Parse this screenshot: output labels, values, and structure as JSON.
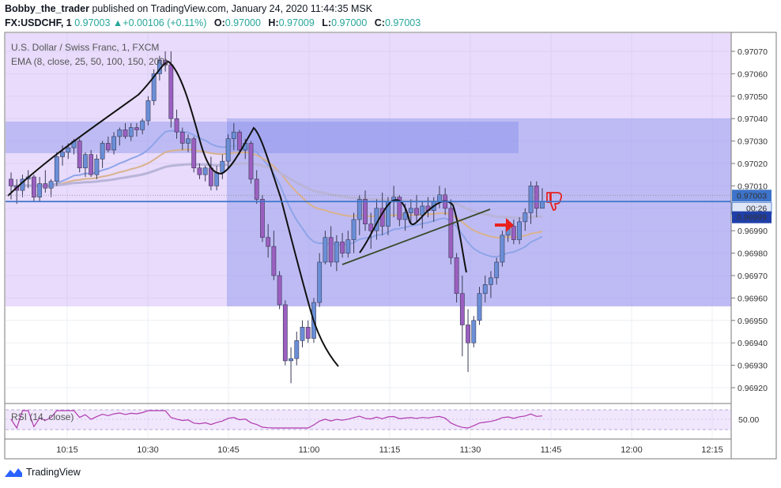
{
  "header": {
    "author": "Bobby_the_trader",
    "published": "published on TradingView.com, January 24, 2020 11:44:35 MSK",
    "symbol": "FX:USDCHF, 1",
    "last": "0.97003",
    "change_arrow": "▲",
    "change": "+0.00106 (+0.11%)",
    "o_label": "O:",
    "o": "0.97000",
    "h_label": "H:",
    "h": "0.97009",
    "l_label": "L:",
    "l": "0.97000",
    "c_label": "C:",
    "c": "0.97003"
  },
  "footer": {
    "brand": "TradingView",
    "logo_icon": "tradingview-logo-icon"
  },
  "colors": {
    "up": "#6a8fd8",
    "down": "#9b5fc0",
    "accent_green": "#26a69a",
    "price_line": "#3d73c9",
    "zone_purple": "rgba(200,170,245,0.42)",
    "zone_blue": "rgba(120,135,235,0.38)",
    "ema_fast": "#8fa4e8",
    "ema_mid": "#d9b28c",
    "ema_slow": "#b9b4d9",
    "rsi": "#b13ab0"
  },
  "chart_data": {
    "type": "candlestick",
    "symbol": "U.S. Dollar / Swiss Franc, 1, FXCM",
    "indicator": "EMA (8, close, 25, 50, 100, 150, 200)",
    "rsi_label": "RSI (14, close)",
    "rsi_tick": "50.00",
    "rsi_value": 50,
    "x_ticks": [
      "10:15",
      "10:30",
      "10:45",
      "11:00",
      "11:15",
      "11:30",
      "11:45",
      "12:00",
      "12:15"
    ],
    "y_ticks": [
      "0.97070",
      "0.97060",
      "0.97050",
      "0.97040",
      "0.97030",
      "0.97020",
      "0.97010",
      "0.97000",
      "0.96990",
      "0.96980",
      "0.96970",
      "0.96960",
      "0.96950",
      "0.96940",
      "0.96930",
      "0.96920"
    ],
    "y_range": [
      0.96915,
      0.97078
    ],
    "current_price_label": "0.97003",
    "countdown_label": "00:26",
    "marker_price_label": "0.96999",
    "current_price": 0.97003,
    "marker_price": 0.96999,
    "candles_start_minute": 0,
    "candles": [
      [
        0.97013,
        0.97016,
        0.97004,
        0.9701
      ],
      [
        0.9701,
        0.97013,
        0.97002,
        0.97008
      ],
      [
        0.97008,
        0.97015,
        0.97005,
        0.97013
      ],
      [
        0.97013,
        0.97017,
        0.97009,
        0.97014
      ],
      [
        0.97014,
        0.97015,
        0.97003,
        0.97005
      ],
      [
        0.97005,
        0.97014,
        0.97003,
        0.97011
      ],
      [
        0.97011,
        0.97017,
        0.97007,
        0.97009
      ],
      [
        0.97009,
        0.97013,
        0.97005,
        0.97012
      ],
      [
        0.97012,
        0.97025,
        0.9701,
        0.97023
      ],
      [
        0.97023,
        0.97028,
        0.97019,
        0.97025
      ],
      [
        0.97025,
        0.97029,
        0.97022,
        0.97027
      ],
      [
        0.97027,
        0.97031,
        0.97024,
        0.9703
      ],
      [
        0.9703,
        0.97031,
        0.97016,
        0.97018
      ],
      [
        0.97018,
        0.97025,
        0.97014,
        0.97024
      ],
      [
        0.97024,
        0.97026,
        0.97014,
        0.97015
      ],
      [
        0.97015,
        0.97024,
        0.97013,
        0.97022
      ],
      [
        0.97022,
        0.9703,
        0.97018,
        0.97029
      ],
      [
        0.97029,
        0.97032,
        0.97025,
        0.97026
      ],
      [
        0.97026,
        0.97034,
        0.97024,
        0.97032
      ],
      [
        0.97032,
        0.97036,
        0.97028,
        0.97035
      ],
      [
        0.97035,
        0.97038,
        0.97031,
        0.97032
      ],
      [
        0.97032,
        0.97038,
        0.9703,
        0.97036
      ],
      [
        0.97036,
        0.97038,
        0.97032,
        0.97035
      ],
      [
        0.97035,
        0.9704,
        0.97033,
        0.97039
      ],
      [
        0.97039,
        0.9705,
        0.97037,
        0.97048
      ],
      [
        0.97048,
        0.97062,
        0.97046,
        0.9706
      ],
      [
        0.9706,
        0.97068,
        0.97057,
        0.97066
      ],
      [
        0.97066,
        0.9707,
        0.97061,
        0.97064
      ],
      [
        0.97064,
        0.9707,
        0.97036,
        0.9704
      ],
      [
        0.9704,
        0.97044,
        0.97031,
        0.97034
      ],
      [
        0.97034,
        0.97036,
        0.97026,
        0.97029
      ],
      [
        0.97029,
        0.97033,
        0.97025,
        0.97031
      ],
      [
        0.97031,
        0.97032,
        0.97016,
        0.97018
      ],
      [
        0.97018,
        0.9702,
        0.97013,
        0.97015
      ],
      [
        0.97015,
        0.97019,
        0.97012,
        0.97018
      ],
      [
        0.97018,
        0.97023,
        0.97008,
        0.9701
      ],
      [
        0.9701,
        0.97019,
        0.97008,
        0.97016
      ],
      [
        0.97016,
        0.97024,
        0.97013,
        0.97021
      ],
      [
        0.97021,
        0.97033,
        0.97018,
        0.97031
      ],
      [
        0.97031,
        0.97038,
        0.97026,
        0.97034
      ],
      [
        0.97034,
        0.97035,
        0.97024,
        0.97026
      ],
      [
        0.97026,
        0.97031,
        0.97022,
        0.97029
      ],
      [
        0.97029,
        0.9703,
        0.97011,
        0.97013
      ],
      [
        0.97013,
        0.97017,
        0.97002,
        0.97004
      ],
      [
        0.97004,
        0.97006,
        0.96985,
        0.96987
      ],
      [
        0.96987,
        0.96993,
        0.96978,
        0.96983
      ],
      [
        0.96983,
        0.9699,
        0.96968,
        0.9697
      ],
      [
        0.9697,
        0.96972,
        0.96955,
        0.96957
      ],
      [
        0.96957,
        0.96959,
        0.9693,
        0.96932
      ],
      [
        0.96932,
        0.96938,
        0.96922,
        0.96933
      ],
      [
        0.96933,
        0.96945,
        0.9693,
        0.96941
      ],
      [
        0.96941,
        0.9695,
        0.96938,
        0.96947
      ],
      [
        0.96947,
        0.9695,
        0.9694,
        0.96942
      ],
      [
        0.96942,
        0.9696,
        0.9694,
        0.96958
      ],
      [
        0.96958,
        0.9698,
        0.96956,
        0.96976
      ],
      [
        0.96976,
        0.9699,
        0.96975,
        0.96987
      ],
      [
        0.96987,
        0.96992,
        0.96974,
        0.96976
      ],
      [
        0.96976,
        0.96988,
        0.96972,
        0.96985
      ],
      [
        0.96985,
        0.96989,
        0.96978,
        0.9698
      ],
      [
        0.9698,
        0.9699,
        0.96978,
        0.96986
      ],
      [
        0.96986,
        0.96998,
        0.9698,
        0.96995
      ],
      [
        0.96995,
        0.97006,
        0.96988,
        0.97004
      ],
      [
        0.97004,
        0.97008,
        0.9699,
        0.96993
      ],
      [
        0.96993,
        0.96998,
        0.96982,
        0.9699
      ],
      [
        0.9699,
        0.97004,
        0.96986,
        0.97
      ],
      [
        0.97,
        0.97007,
        0.96988,
        0.96992
      ],
      [
        0.96992,
        0.97005,
        0.96988,
        0.97003
      ],
      [
        0.97003,
        0.9701,
        0.96996,
        0.97005
      ],
      [
        0.97005,
        0.97006,
        0.96992,
        0.96995
      ],
      [
        0.96995,
        0.97002,
        0.9699,
        0.96998
      ],
      [
        0.96998,
        0.97004,
        0.96993,
        0.97
      ],
      [
        0.97,
        0.97006,
        0.96994,
        0.96997
      ],
      [
        0.96997,
        0.97003,
        0.96991,
        0.97001
      ],
      [
        0.97001,
        0.97005,
        0.96996,
        0.96999
      ],
      [
        0.96999,
        0.97005,
        0.96994,
        0.97003
      ],
      [
        0.97003,
        0.9701,
        0.97,
        0.97006
      ],
      [
        0.97006,
        0.97009,
        0.96997,
        0.97
      ],
      [
        0.97,
        0.97004,
        0.96975,
        0.96978
      ],
      [
        0.96978,
        0.9698,
        0.96958,
        0.96962
      ],
      [
        0.96962,
        0.9697,
        0.96934,
        0.96948
      ],
      [
        0.96948,
        0.96955,
        0.96927,
        0.9694
      ],
      [
        0.9694,
        0.96952,
        0.96938,
        0.9695
      ],
      [
        0.9695,
        0.96965,
        0.96948,
        0.96962
      ],
      [
        0.96962,
        0.9697,
        0.96958,
        0.96966
      ],
      [
        0.96966,
        0.96972,
        0.9696,
        0.96969
      ],
      [
        0.96969,
        0.96978,
        0.96966,
        0.96976
      ],
      [
        0.96976,
        0.9699,
        0.96974,
        0.96988
      ],
      [
        0.96988,
        0.96995,
        0.96985,
        0.96992
      ],
      [
        0.96992,
        0.96995,
        0.96984,
        0.96986
      ],
      [
        0.96986,
        0.96996,
        0.96984,
        0.96994
      ],
      [
        0.96994,
        0.97,
        0.9699,
        0.96998
      ],
      [
        0.96998,
        0.97012,
        0.96993,
        0.9701
      ],
      [
        0.9701,
        0.97012,
        0.96996,
        0.97
      ],
      [
        0.97,
        0.97009,
        0.97,
        0.97003
      ]
    ]
  }
}
